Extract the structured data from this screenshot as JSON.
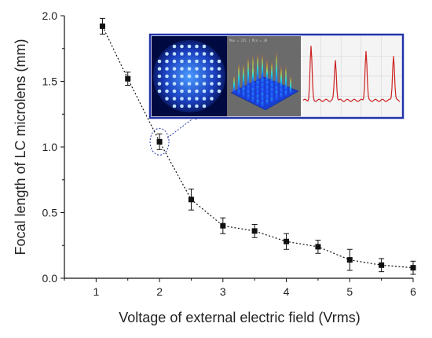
{
  "chart_data": {
    "type": "scatter",
    "title": "",
    "xlabel": "Voltage of external electric field (Vrms)",
    "ylabel": "Focal length of LC microlens (mm)",
    "xlim": [
      0.5,
      6.0
    ],
    "ylim": [
      0.0,
      2.0
    ],
    "xticks": [
      "1",
      "2",
      "3",
      "4",
      "5",
      "6"
    ],
    "yticks": [
      "0.0",
      "0.5",
      "1.0",
      "1.5",
      "2.0"
    ],
    "grid": false,
    "legend": "none",
    "line_style": "dotted",
    "marker": "square",
    "series": [
      {
        "x": [
          1.1,
          1.5,
          2.0,
          2.5,
          3.0,
          3.5,
          4.0,
          4.5,
          5.0,
          5.5,
          6.0
        ],
        "values": [
          1.92,
          1.52,
          1.04,
          0.6,
          0.4,
          0.36,
          0.28,
          0.24,
          0.14,
          0.1,
          0.08
        ],
        "errors": [
          0.06,
          0.05,
          0.06,
          0.08,
          0.06,
          0.05,
          0.06,
          0.05,
          0.08,
          0.05,
          0.05
        ]
      }
    ],
    "annotation": {
      "target_x": 2.0,
      "description": "dashed ellipse with arrow to inset images",
      "inset_caption": "Max = 235 | Min = 30"
    },
    "colors": {
      "marker": "#111111",
      "inset_border": "#2233aa",
      "arrow": "#2233aa",
      "profile_line": "#cc2222"
    }
  }
}
